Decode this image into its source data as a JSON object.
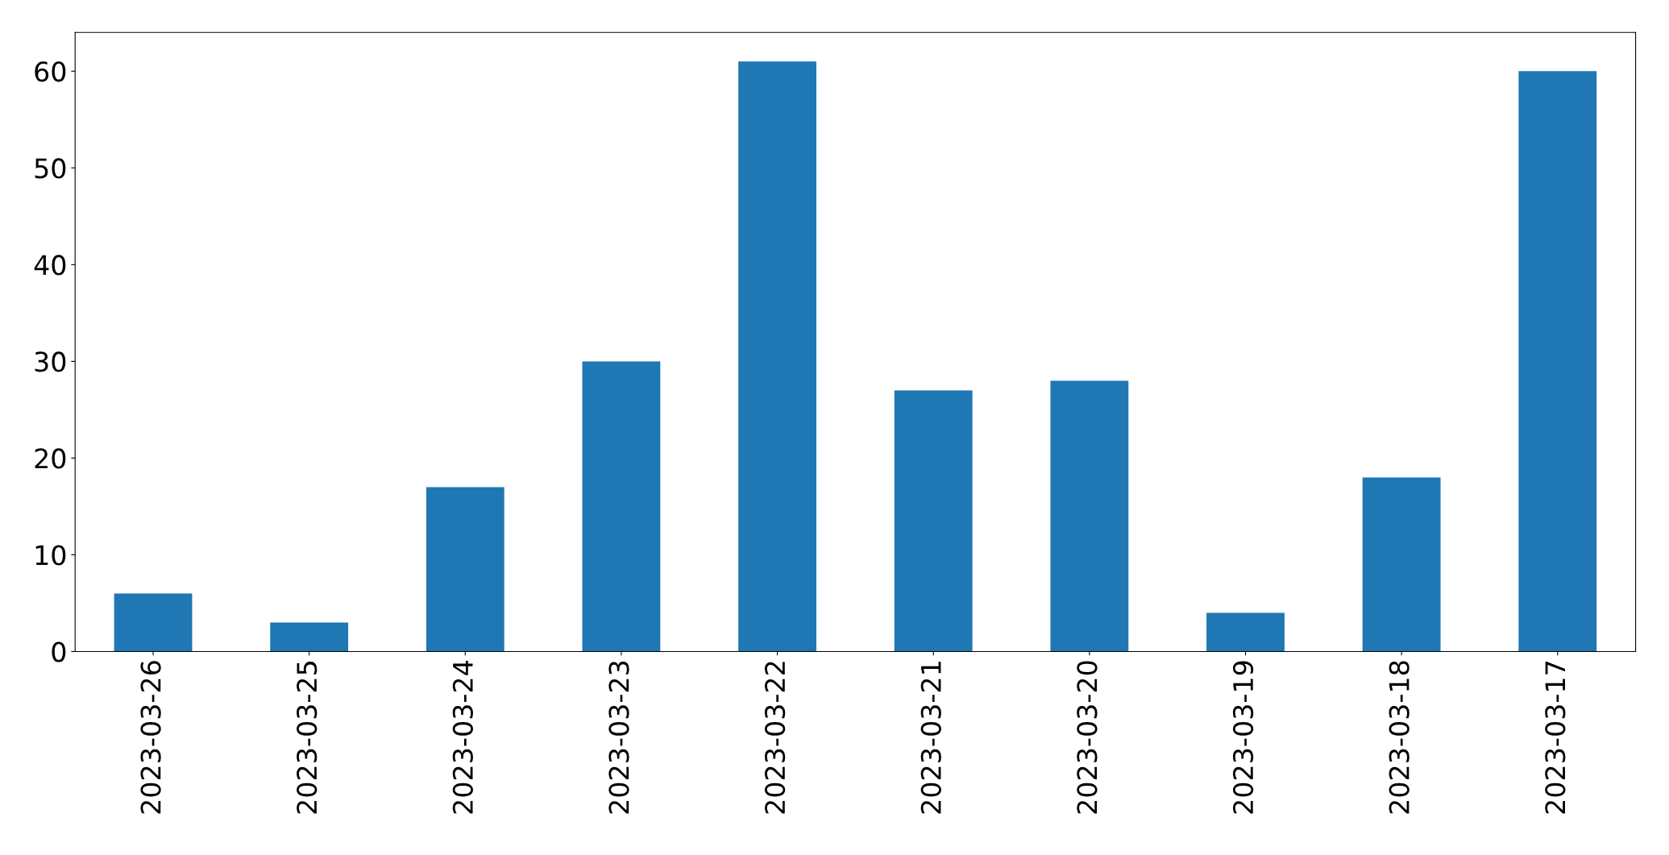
{
  "chart_data": {
    "type": "bar",
    "categories": [
      "2023-03-26",
      "2023-03-25",
      "2023-03-24",
      "2023-03-23",
      "2023-03-22",
      "2023-03-21",
      "2023-03-20",
      "2023-03-19",
      "2023-03-18",
      "2023-03-17"
    ],
    "values": [
      6,
      3,
      17,
      30,
      61,
      27,
      28,
      4,
      18,
      60
    ],
    "color": "#1f77b4",
    "ylim": [
      0,
      64
    ],
    "yticks": [
      0,
      10,
      20,
      30,
      40,
      50,
      60
    ],
    "grid": false,
    "legend": false
  }
}
